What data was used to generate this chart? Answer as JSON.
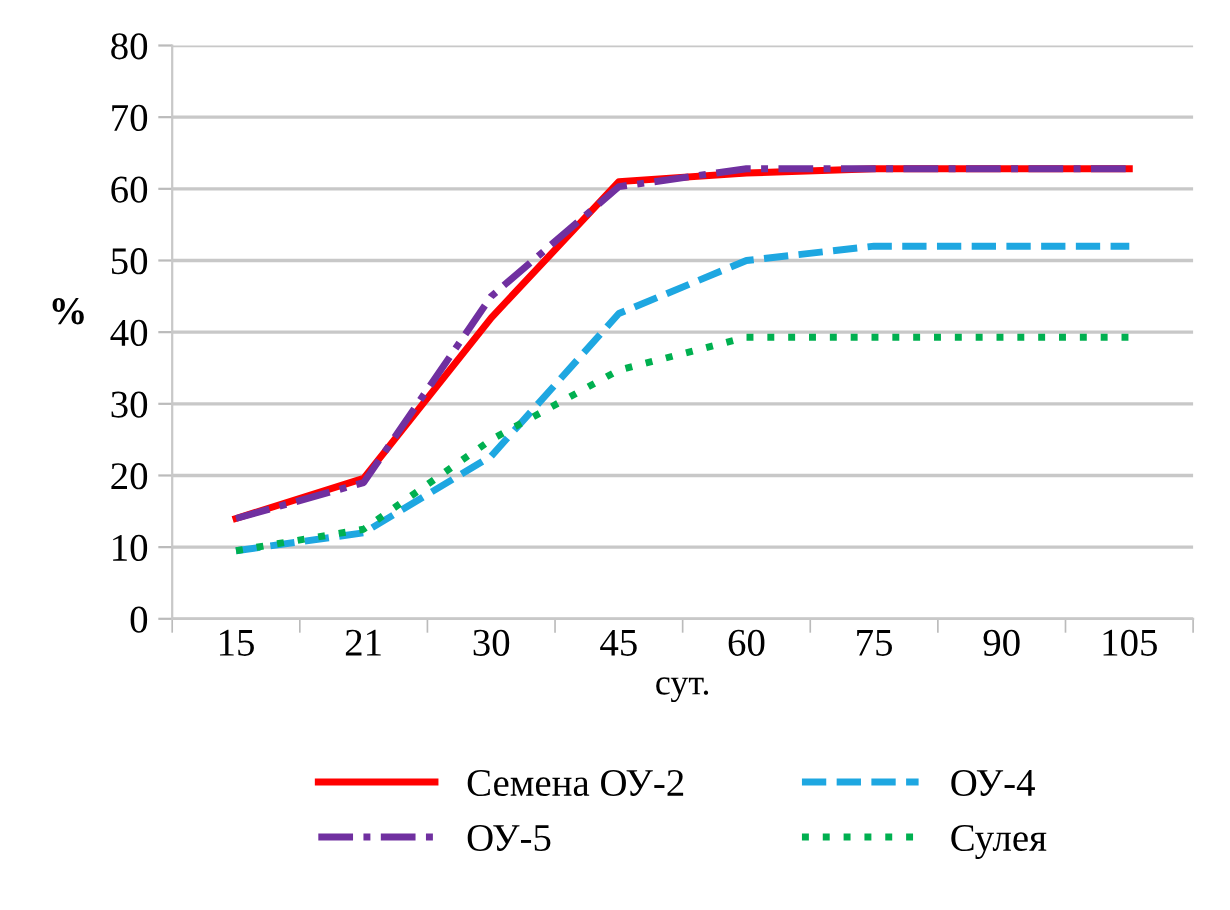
{
  "chart_data": {
    "type": "line",
    "xlabel": "сут.",
    "ylabel": "%",
    "categories": [
      "15",
      "21",
      "30",
      "45",
      "60",
      "75",
      "90",
      "105"
    ],
    "series": [
      {
        "name": "Семена ОУ-2",
        "color": "#ff0000",
        "line_style": "solid",
        "values": [
          14,
          19.6,
          42,
          61,
          62.2,
          62.8,
          62.8,
          62.8
        ]
      },
      {
        "name": "ОУ-4",
        "color": "#1ea7e1",
        "line_style": "dashed",
        "values": [
          9.5,
          12,
          22.7,
          42.6,
          50,
          52,
          52,
          52
        ]
      },
      {
        "name": "ОУ-5",
        "color": "#7030a0",
        "line_style": "dashdot",
        "values": [
          14,
          19,
          45,
          60.3,
          62.8,
          62.8,
          62.8,
          62.8
        ]
      },
      {
        "name": "Сулея",
        "color": "#00b050",
        "line_style": "dotted",
        "values": [
          9.5,
          12.5,
          25,
          34.7,
          39.3,
          39.3,
          39.3,
          39.3
        ]
      }
    ],
    "ylim": [
      0,
      80
    ],
    "yticks": [
      0,
      10,
      20,
      30,
      40,
      50,
      60,
      70,
      80
    ],
    "grid": "y",
    "legend": "bottom",
    "marker": "none"
  }
}
